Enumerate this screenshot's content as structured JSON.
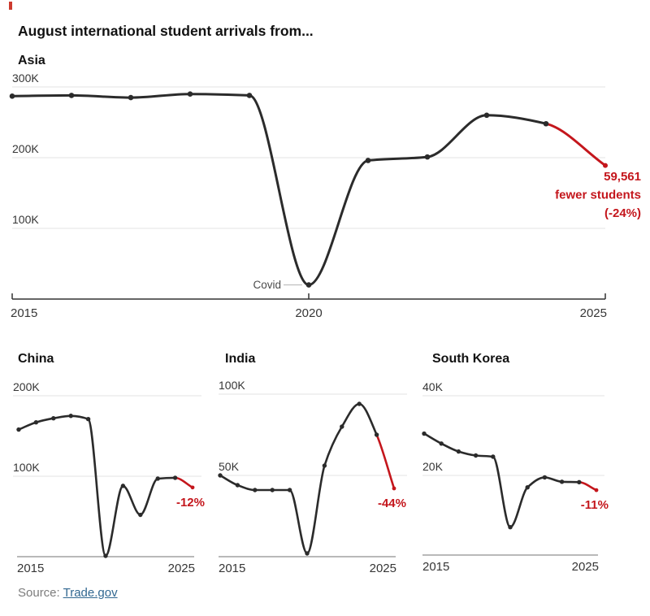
{
  "page": {
    "title": "August international student arrivals from..."
  },
  "source": {
    "label": "Source:",
    "link_text": "Trade.gov"
  },
  "colors": {
    "line": "#2b2b2b",
    "red": "#c4161c",
    "grid": "#e3e3e3",
    "label": "#363636",
    "axis_dark": "#333333",
    "axis_light": "#8f8f8f",
    "annotation_gray": "#4a4a4a",
    "connector": "#b3b3b3"
  },
  "chart_data": [
    {
      "id": "asia",
      "type": "line",
      "title": "Asia",
      "unit": "students (values in thousands)",
      "x": [
        2015,
        2016,
        2017,
        2018,
        2019,
        2020,
        2021,
        2022,
        2023,
        2024,
        2025
      ],
      "values": [
        287,
        288,
        285,
        290,
        288,
        20,
        196,
        201,
        260,
        248,
        189
      ],
      "ylim": [
        0,
        320
      ],
      "gridlines": [
        {
          "value": 300,
          "label": "300K"
        },
        {
          "value": 200,
          "label": "200K"
        },
        {
          "value": 100,
          "label": "100K"
        }
      ],
      "x_ticks": [
        {
          "value": 2015,
          "label": "2015"
        },
        {
          "value": 2020,
          "label": "2020"
        },
        {
          "value": 2025,
          "label": "2025"
        }
      ],
      "highlight_from_year": 2024,
      "annotations": {
        "covid": {
          "text": "Covid",
          "year": 2020
        },
        "decline": {
          "lines": [
            "59,561",
            "fewer students",
            "(-24%)"
          ]
        }
      }
    },
    {
      "id": "china",
      "type": "line",
      "title": "China",
      "unit": "students (values in thousands)",
      "x": [
        2015,
        2016,
        2017,
        2018,
        2019,
        2020,
        2021,
        2022,
        2023,
        2024,
        2025
      ],
      "values": [
        158,
        167,
        172,
        175,
        171,
        1,
        88,
        52,
        97,
        98,
        86
      ],
      "ylim": [
        0,
        210
      ],
      "gridlines": [
        {
          "value": 200,
          "label": "200K"
        },
        {
          "value": 100,
          "label": "100K"
        }
      ],
      "x_ticks": [
        {
          "value": 2015,
          "label": "2015"
        },
        {
          "value": 2025,
          "label": "2025"
        }
      ],
      "highlight_from_year": 2024,
      "decline_label": "-12%"
    },
    {
      "id": "india",
      "type": "line",
      "title": "India",
      "unit": "students (values in thousands)",
      "x": [
        2015,
        2016,
        2017,
        2018,
        2019,
        2020,
        2021,
        2022,
        2023,
        2024,
        2025
      ],
      "values": [
        50,
        44,
        41,
        41,
        41,
        2,
        56,
        80,
        94,
        75,
        42
      ],
      "ylim": [
        0,
        105
      ],
      "gridlines": [
        {
          "value": 100,
          "label": "100K"
        },
        {
          "value": 50,
          "label": "50K"
        }
      ],
      "x_ticks": [
        {
          "value": 2015,
          "label": "2015"
        },
        {
          "value": 2025,
          "label": "2025"
        }
      ],
      "highlight_from_year": 2024,
      "decline_label": "-44%"
    },
    {
      "id": "south_korea",
      "type": "line",
      "title": "South Korea",
      "unit": "students (values in thousands)",
      "x": [
        2015,
        2016,
        2017,
        2018,
        2019,
        2020,
        2021,
        2022,
        2023,
        2024,
        2025
      ],
      "values": [
        30.5,
        28,
        26,
        25,
        24.7,
        7,
        17,
        19.5,
        18.4,
        18.3,
        16.3
      ],
      "ylim": [
        0,
        42
      ],
      "gridlines": [
        {
          "value": 40,
          "label": "40K"
        },
        {
          "value": 20,
          "label": "20K"
        }
      ],
      "x_ticks": [
        {
          "value": 2015,
          "label": "2015"
        },
        {
          "value": 2025,
          "label": "2025"
        }
      ],
      "highlight_from_year": 2024,
      "decline_label": "-11%"
    }
  ]
}
